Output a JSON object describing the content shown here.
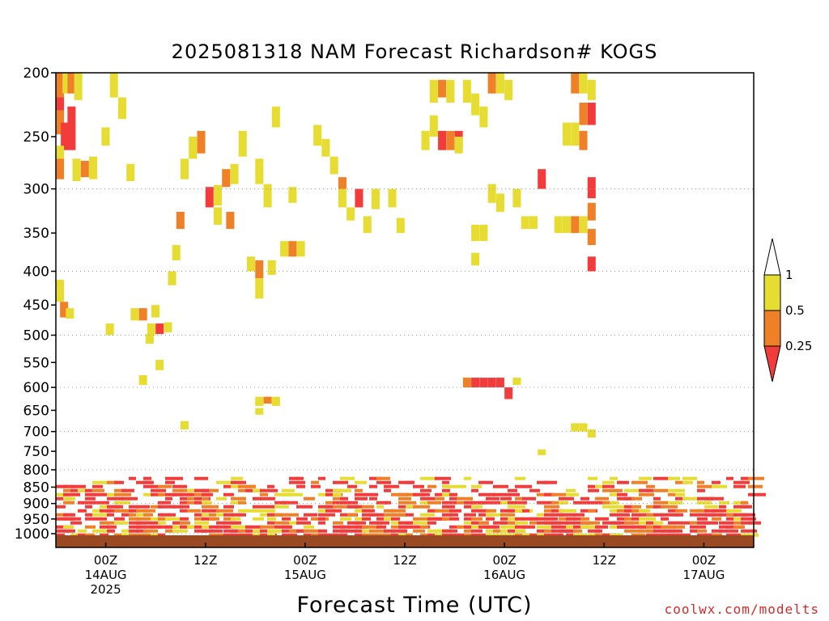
{
  "page": {
    "title": "2025081318 NAM Forecast Richardson# KOGS",
    "credit": "coolwx.com/modelts"
  },
  "chart_data": {
    "type": "heatmap",
    "title": "2025081318 NAM Forecast Richardson# KOGS",
    "xlabel": "Forecast Time (UTC)",
    "ylabel": "",
    "y_scale": "log (pressure, hPa)",
    "ylim": [
      1000,
      200
    ],
    "y_ticks": [
      "200",
      "250",
      "300",
      "350",
      "400",
      "450",
      "500",
      "550",
      "600",
      "650",
      "700",
      "750",
      "800",
      "850",
      "900",
      "950",
      "1000"
    ],
    "x_range_hours_from_18Z_13AUG": [
      0,
      84
    ],
    "x_ticks": [
      {
        "hour": 6,
        "lines": [
          "00Z",
          "14AUG",
          "2025"
        ]
      },
      {
        "hour": 18,
        "lines": [
          "12Z"
        ]
      },
      {
        "hour": 30,
        "lines": [
          "00Z",
          "15AUG"
        ]
      },
      {
        "hour": 42,
        "lines": [
          "12Z"
        ]
      },
      {
        "hour": 54,
        "lines": [
          "00Z",
          "16AUG"
        ]
      },
      {
        "hour": 66,
        "lines": [
          "12Z"
        ]
      },
      {
        "hour": 78,
        "lines": [
          "00Z",
          "17AUG"
        ]
      }
    ],
    "grid": "dotted horizontal lines at 300, 400, 500, 600, 700, 800, 900, 1000 hPa",
    "legend": {
      "position": "right",
      "bins": [
        {
          "range": "< 0.25",
          "color": "#f23c3c"
        },
        {
          "range": "0.25 - 0.5",
          "color": "#ee8028"
        },
        {
          "range": "0.5 - 1",
          "color": "#e6dc32"
        }
      ],
      "labels": [
        "1",
        "0.5",
        "0.25"
      ]
    },
    "colors": {
      "red": "#f23c3c",
      "orange": "#ee8028",
      "yellow": "#e6dc32",
      "ground": "#9a4a22"
    },
    "cells": [
      {
        "t": 0,
        "p": [
          200,
          225
        ],
        "c": "orange"
      },
      {
        "t": 0.8,
        "p": [
          200,
          215
        ],
        "c": "yellow"
      },
      {
        "t": 1.4,
        "p": [
          200,
          215
        ],
        "c": "orange"
      },
      {
        "t": 2.2,
        "p": [
          200,
          220
        ],
        "c": "yellow"
      },
      {
        "t": 0,
        "p": [
          218,
          232
        ],
        "c": "red"
      },
      {
        "t": 0,
        "p": [
          228,
          248
        ],
        "c": "orange"
      },
      {
        "t": 0.6,
        "p": [
          238,
          262
        ],
        "c": "red"
      },
      {
        "t": 1.4,
        "p": [
          225,
          262
        ],
        "c": "red"
      },
      {
        "t": 0,
        "p": [
          258,
          275
        ],
        "c": "yellow"
      },
      {
        "t": 0,
        "p": [
          270,
          290
        ],
        "c": "orange"
      },
      {
        "t": 2,
        "p": [
          270,
          292
        ],
        "c": "yellow"
      },
      {
        "t": 3,
        "p": [
          272,
          288
        ],
        "c": "orange"
      },
      {
        "t": 4,
        "p": [
          268,
          290
        ],
        "c": "yellow"
      },
      {
        "t": 5.5,
        "p": [
          242,
          258
        ],
        "c": "yellow"
      },
      {
        "t": 6.5,
        "p": [
          200,
          218
        ],
        "c": "yellow"
      },
      {
        "t": 7.5,
        "p": [
          218,
          235
        ],
        "c": "yellow"
      },
      {
        "t": 8.5,
        "p": [
          275,
          292
        ],
        "c": "yellow"
      },
      {
        "t": 0,
        "p": [
          412,
          445
        ],
        "c": "yellow"
      },
      {
        "t": 0.5,
        "p": [
          445,
          470
        ],
        "c": "orange"
      },
      {
        "t": 1.2,
        "p": [
          455,
          472
        ],
        "c": "yellow"
      },
      {
        "t": 9,
        "p": [
          455,
          475
        ],
        "c": "yellow"
      },
      {
        "t": 10,
        "p": [
          455,
          475
        ],
        "c": "orange"
      },
      {
        "t": 11,
        "p": [
          480,
          500
        ],
        "c": "yellow"
      },
      {
        "t": 12,
        "p": [
          480,
          498
        ],
        "c": "red"
      },
      {
        "t": 13,
        "p": [
          478,
          495
        ],
        "c": "yellow"
      },
      {
        "t": 11.5,
        "p": [
          450,
          470
        ],
        "c": "yellow"
      },
      {
        "t": 10.8,
        "p": [
          498,
          515
        ],
        "c": "yellow"
      },
      {
        "t": 12,
        "p": [
          545,
          565
        ],
        "c": "yellow"
      },
      {
        "t": 6,
        "p": [
          480,
          500
        ],
        "c": "yellow"
      },
      {
        "t": 16,
        "p": [
          250,
          270
        ],
        "c": "yellow"
      },
      {
        "t": 17,
        "p": [
          245,
          265
        ],
        "c": "orange"
      },
      {
        "t": 15,
        "p": [
          270,
          290
        ],
        "c": "yellow"
      },
      {
        "t": 14.5,
        "p": [
          325,
          345
        ],
        "c": "orange"
      },
      {
        "t": 14,
        "p": [
          365,
          385
        ],
        "c": "yellow"
      },
      {
        "t": 13.5,
        "p": [
          400,
          420
        ],
        "c": "yellow"
      },
      {
        "t": 18,
        "p": [
          298,
          320
        ],
        "c": "red"
      },
      {
        "t": 19,
        "p": [
          296,
          318
        ],
        "c": "yellow"
      },
      {
        "t": 19,
        "p": [
          320,
          340
        ],
        "c": "yellow"
      },
      {
        "t": 20,
        "p": [
          280,
          298
        ],
        "c": "orange"
      },
      {
        "t": 21,
        "p": [
          275,
          295
        ],
        "c": "yellow"
      },
      {
        "t": 20.5,
        "p": [
          325,
          345
        ],
        "c": "orange"
      },
      {
        "t": 22,
        "p": [
          245,
          268
        ],
        "c": "yellow"
      },
      {
        "t": 24,
        "p": [
          270,
          295
        ],
        "c": "yellow"
      },
      {
        "t": 25,
        "p": [
          295,
          320
        ],
        "c": "yellow"
      },
      {
        "t": 26,
        "p": [
          225,
          242
        ],
        "c": "yellow"
      },
      {
        "t": 28,
        "p": [
          298,
          315
        ],
        "c": "yellow"
      },
      {
        "t": 24,
        "p": [
          385,
          410
        ],
        "c": "orange"
      },
      {
        "t": 23,
        "p": [
          380,
          400
        ],
        "c": "yellow"
      },
      {
        "t": 24,
        "p": [
          410,
          440
        ],
        "c": "yellow"
      },
      {
        "t": 25.5,
        "p": [
          385,
          405
        ],
        "c": "yellow"
      },
      {
        "t": 10,
        "p": [
          575,
          595
        ],
        "c": "yellow"
      },
      {
        "t": 15,
        "p": [
          675,
          695
        ],
        "c": "yellow"
      },
      {
        "t": 24,
        "p": [
          620,
          640
        ],
        "c": "yellow"
      },
      {
        "t": 25,
        "p": [
          620,
          635
        ],
        "c": "orange"
      },
      {
        "t": 26,
        "p": [
          620,
          640
        ],
        "c": "yellow"
      },
      {
        "t": 24,
        "p": [
          645,
          660
        ],
        "c": "yellow"
      },
      {
        "t": 27,
        "p": [
          360,
          380
        ],
        "c": "yellow"
      },
      {
        "t": 28,
        "p": [
          360,
          380
        ],
        "c": "orange"
      },
      {
        "t": 29,
        "p": [
          360,
          380
        ],
        "c": "yellow"
      },
      {
        "t": 31,
        "p": [
          240,
          258
        ],
        "c": "yellow"
      },
      {
        "t": 32,
        "p": [
          252,
          268
        ],
        "c": "yellow"
      },
      {
        "t": 33,
        "p": [
          268,
          285
        ],
        "c": "yellow"
      },
      {
        "t": 34,
        "p": [
          288,
          300
        ],
        "c": "orange"
      },
      {
        "t": 34,
        "p": [
          300,
          320
        ],
        "c": "yellow"
      },
      {
        "t": 35,
        "p": [
          320,
          335
        ],
        "c": "yellow"
      },
      {
        "t": 36,
        "p": [
          300,
          320
        ],
        "c": "red"
      },
      {
        "t": 37,
        "p": [
          330,
          350
        ],
        "c": "yellow"
      },
      {
        "t": 38,
        "p": [
          300,
          322
        ],
        "c": "yellow"
      },
      {
        "t": 40,
        "p": [
          300,
          320
        ],
        "c": "yellow"
      },
      {
        "t": 41,
        "p": [
          332,
          350
        ],
        "c": "yellow"
      },
      {
        "t": 44,
        "p": [
          245,
          262
        ],
        "c": "yellow"
      },
      {
        "t": 45,
        "p": [
          205,
          222
        ],
        "c": "yellow"
      },
      {
        "t": 46,
        "p": [
          205,
          218
        ],
        "c": "orange"
      },
      {
        "t": 47,
        "p": [
          205,
          222
        ],
        "c": "yellow"
      },
      {
        "t": 45,
        "p": [
          232,
          250
        ],
        "c": "yellow"
      },
      {
        "t": 46,
        "p": [
          245,
          262
        ],
        "c": "red"
      },
      {
        "t": 47,
        "p": [
          245,
          262
        ],
        "c": "orange"
      },
      {
        "t": 48,
        "p": [
          245,
          262
        ],
        "c": "red"
      },
      {
        "t": 48,
        "p": [
          250,
          265
        ],
        "c": "yellow"
      },
      {
        "t": 49,
        "p": [
          205,
          222
        ],
        "c": "yellow"
      },
      {
        "t": 50,
        "p": [
          215,
          232
        ],
        "c": "yellow"
      },
      {
        "t": 51,
        "p": [
          225,
          242
        ],
        "c": "yellow"
      },
      {
        "t": 52,
        "p": [
          200,
          215
        ],
        "c": "orange"
      },
      {
        "t": 53,
        "p": [
          200,
          215
        ],
        "c": "yellow"
      },
      {
        "t": 54,
        "p": [
          205,
          220
        ],
        "c": "yellow"
      },
      {
        "t": 50,
        "p": [
          340,
          360
        ],
        "c": "yellow"
      },
      {
        "t": 51,
        "p": [
          340,
          360
        ],
        "c": "yellow"
      },
      {
        "t": 50,
        "p": [
          375,
          392
        ],
        "c": "yellow"
      },
      {
        "t": 49,
        "p": [
          580,
          600
        ],
        "c": "orange"
      },
      {
        "t": 50,
        "p": [
          580,
          600
        ],
        "c": "red"
      },
      {
        "t": 51,
        "p": [
          580,
          600
        ],
        "c": "red"
      },
      {
        "t": 52,
        "p": [
          580,
          600
        ],
        "c": "red"
      },
      {
        "t": 53,
        "p": [
          580,
          600
        ],
        "c": "red"
      },
      {
        "t": 54,
        "p": [
          600,
          625
        ],
        "c": "red"
      },
      {
        "t": 55,
        "p": [
          580,
          595
        ],
        "c": "yellow"
      },
      {
        "t": 52,
        "p": [
          295,
          315
        ],
        "c": "yellow"
      },
      {
        "t": 53,
        "p": [
          305,
          325
        ],
        "c": "yellow"
      },
      {
        "t": 55,
        "p": [
          300,
          320
        ],
        "c": "yellow"
      },
      {
        "t": 56,
        "p": [
          330,
          345
        ],
        "c": "yellow"
      },
      {
        "t": 57,
        "p": [
          330,
          345
        ],
        "c": "yellow"
      },
      {
        "t": 58,
        "p": [
          280,
          300
        ],
        "c": "red"
      },
      {
        "t": 60,
        "p": [
          330,
          350
        ],
        "c": "yellow"
      },
      {
        "t": 61,
        "p": [
          330,
          350
        ],
        "c": "yellow"
      },
      {
        "t": 62,
        "p": [
          330,
          350
        ],
        "c": "orange"
      },
      {
        "t": 63,
        "p": [
          330,
          350
        ],
        "c": "yellow"
      },
      {
        "t": 58,
        "p": [
          745,
          760
        ],
        "c": "yellow"
      },
      {
        "t": 62,
        "p": [
          680,
          700
        ],
        "c": "yellow"
      },
      {
        "t": 63,
        "p": [
          680,
          700
        ],
        "c": "yellow"
      },
      {
        "t": 64,
        "p": [
          695,
          715
        ],
        "c": "yellow"
      },
      {
        "t": 62,
        "p": [
          200,
          215
        ],
        "c": "orange"
      },
      {
        "t": 63,
        "p": [
          200,
          215
        ],
        "c": "yellow"
      },
      {
        "t": 63,
        "p": [
          222,
          240
        ],
        "c": "orange"
      },
      {
        "t": 64,
        "p": [
          222,
          240
        ],
        "c": "red"
      },
      {
        "t": 64,
        "p": [
          205,
          220
        ],
        "c": "yellow"
      },
      {
        "t": 61,
        "p": [
          238,
          258
        ],
        "c": "yellow"
      },
      {
        "t": 62,
        "p": [
          238,
          258
        ],
        "c": "yellow"
      },
      {
        "t": 63,
        "p": [
          245,
          262
        ],
        "c": "orange"
      },
      {
        "t": 64,
        "p": [
          288,
          310
        ],
        "c": "red"
      },
      {
        "t": 64,
        "p": [
          315,
          335
        ],
        "c": "orange"
      },
      {
        "t": 64,
        "p": [
          345,
          365
        ],
        "c": "orange"
      },
      {
        "t": 64,
        "p": [
          380,
          400
        ],
        "c": "red"
      }
    ],
    "lower_band_hpa": [
      800,
      1000
    ],
    "lower_band_note": "dense mix of red, orange and yellow cells in the boundary layer (~800-1000 hPa) across the whole forecast period; brown ground shading below 1000 hPa"
  }
}
